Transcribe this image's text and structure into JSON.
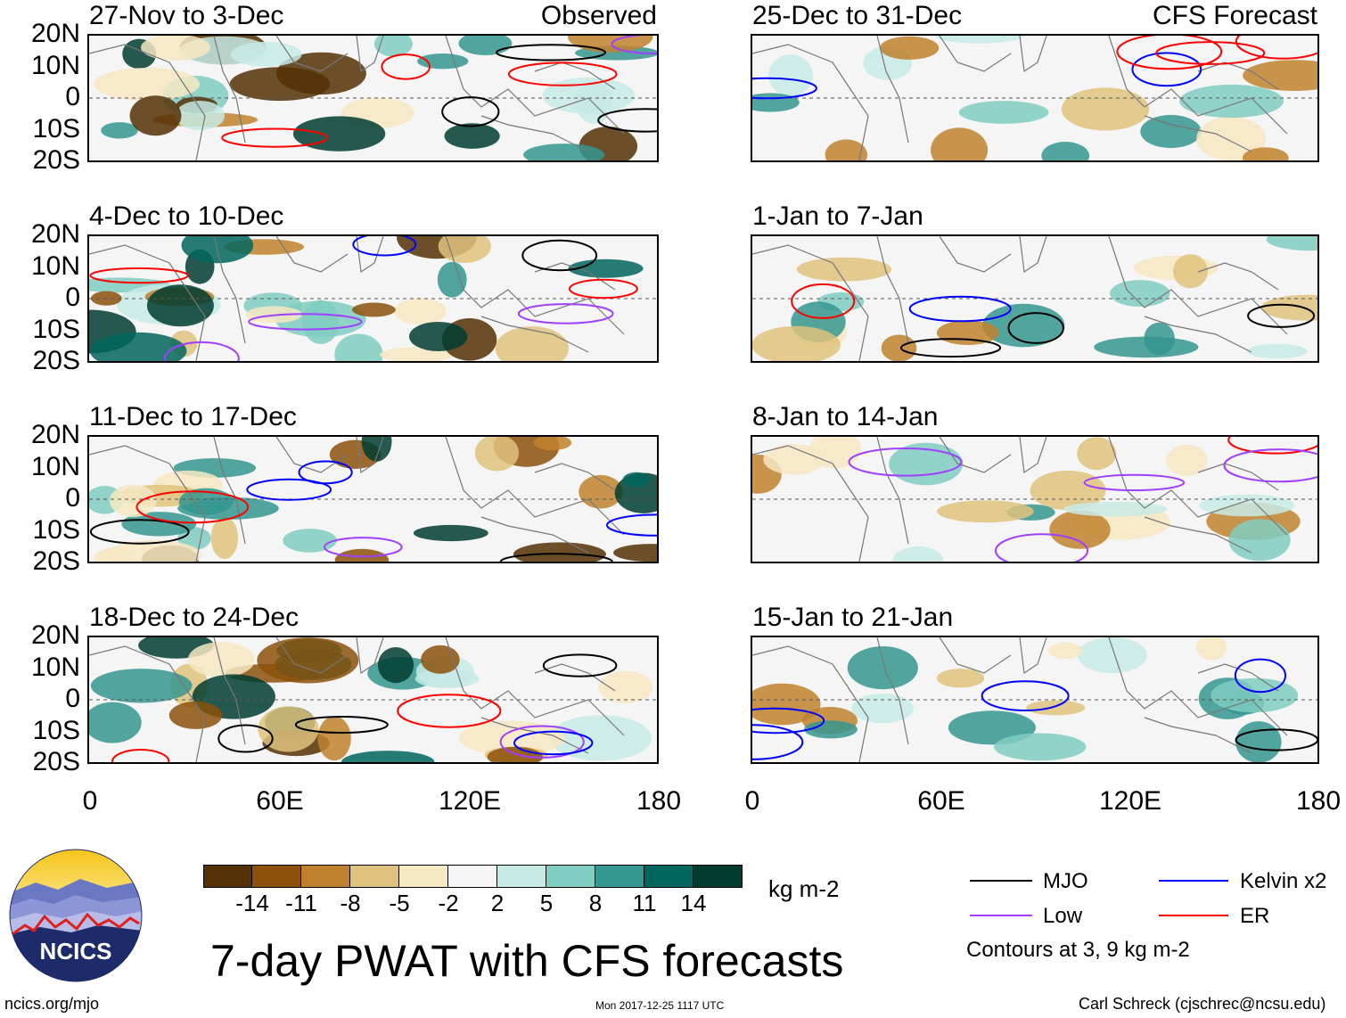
{
  "chart_data": {
    "type": "heatmap",
    "title": "7-day PWAT with CFS forecasts",
    "units": "kg m-2",
    "x_tick_labels": [
      "0",
      "60E",
      "120E",
      "180"
    ],
    "y_tick_labels": [
      "20N",
      "10N",
      "0",
      "10S",
      "20S"
    ],
    "xlim": [
      0,
      180
    ],
    "ylim": [
      -20,
      20
    ],
    "observed_label": "Observed",
    "forecast_label": "CFS Forecast",
    "panels_left": [
      {
        "title": "27-Nov to 3-Dec"
      },
      {
        "title": "4-Dec to 10-Dec"
      },
      {
        "title": "11-Dec to 17-Dec"
      },
      {
        "title": "18-Dec to 24-Dec"
      }
    ],
    "panels_right": [
      {
        "title": "25-Dec to 31-Dec"
      },
      {
        "title": "1-Jan to 7-Jan"
      },
      {
        "title": "8-Jan to 14-Jan"
      },
      {
        "title": "15-Jan to 21-Jan"
      }
    ],
    "colorbar": {
      "colors": [
        "#543005",
        "#8c510a",
        "#bf812d",
        "#dfc27d",
        "#f6e8c3",
        "#f5f5f5",
        "#c7eae5",
        "#80cdc1",
        "#35978f",
        "#01665e",
        "#003c30"
      ],
      "ticks": [
        "-14",
        "-11",
        "-8",
        "-5",
        "-2",
        "2",
        "5",
        "8",
        "11",
        "14"
      ]
    },
    "legend": [
      {
        "label": "MJO",
        "color": "#000000"
      },
      {
        "label": "Kelvin x2",
        "color": "#0000ff"
      },
      {
        "label": "Low",
        "color": "#a040ff"
      },
      {
        "label": "ER",
        "color": "#ff0000"
      }
    ],
    "contour_note": "Contours at 3, 9 kg m-2"
  },
  "footer": {
    "logo_text": "NCICS",
    "website": "ncics.org/mjo",
    "timestamp": "Mon 2017-12-25 1117 UTC",
    "credit": "Carl Schreck (cjschrec@ncsu.edu)"
  }
}
